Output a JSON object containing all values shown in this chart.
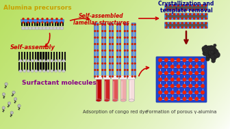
{
  "labels": {
    "alumina_precursors": "Alumina precursors",
    "self_assembly": "Self-assembly",
    "surfactant_molecules": "Surfactant molecules",
    "self_assembled_lamellar": "Self-assembled\nlamellar structures",
    "crystallization": "Crystallization and\ntemplate removal",
    "adsorption": "Adsorption of congo red dye",
    "formation": "Formation of porous γ-alumina"
  },
  "label_colors": {
    "alumina_precursors": "#c8a000",
    "self_assembly": "#cc0000",
    "surfactant_molecules": "#880088",
    "self_assembled_lamellar": "#cc0000",
    "crystallization": "#000088",
    "adsorption": "#333333",
    "formation": "#333333"
  },
  "label_fontsizes": {
    "alumina_precursors": 6.5,
    "self_assembly": 6.0,
    "surfactant_molecules": 6.5,
    "self_assembled_lamellar": 5.5,
    "crystallization": 5.5,
    "adsorption": 4.8,
    "formation": 4.8
  },
  "figsize": [
    3.36,
    1.89
  ],
  "dpi": 100
}
